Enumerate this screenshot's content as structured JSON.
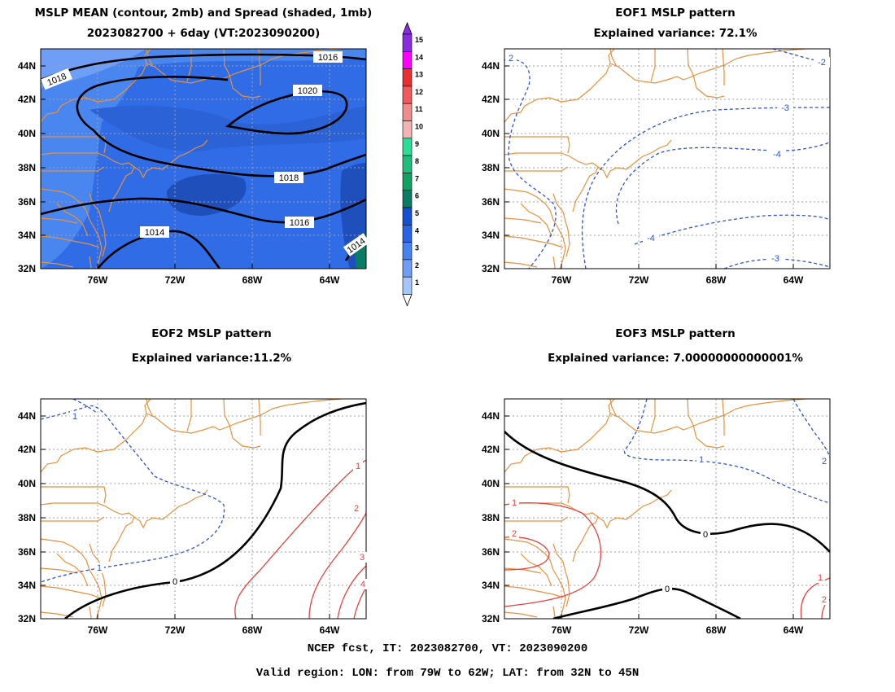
{
  "panels": [
    {
      "title_line1": "MSLP MEAN (contour, 2mb) and Spread (shaded, 1mb)",
      "title_line2": "2023082700 + 6day (VT:2023090200)",
      "contour_labels": [
        "1018",
        "1016",
        "1020",
        "1018",
        "1016",
        "1014",
        "1014",
        "1016"
      ]
    },
    {
      "title_line1": "EOF1 MSLP pattern",
      "title_line2": "Explained variance: 72.1%",
      "contour_labels": [
        "2",
        "-2",
        "-3",
        "-4",
        "-4",
        "-3"
      ]
    },
    {
      "title_line1": "EOF2 MSLP pattern",
      "title_line2": "Explained variance:11.2%",
      "contour_labels": [
        "1",
        "1",
        "0",
        "1",
        "2",
        "3",
        "4"
      ]
    },
    {
      "title_line1": "EOF3 MSLP pattern",
      "title_line2": "Explained variance: 7.00000000000001%",
      "contour_labels": [
        "1",
        "2",
        "1",
        "0",
        "0",
        "1",
        "2",
        "2"
      ]
    }
  ],
  "axes": {
    "lon_ticks": [
      "76W",
      "72W",
      "68W",
      "64W"
    ],
    "lat_ticks": [
      "44N",
      "42N",
      "40N",
      "38N",
      "36N",
      "34N",
      "32N"
    ]
  },
  "colorbar": {
    "levels": [
      "15",
      "14",
      "13",
      "12",
      "11",
      "10",
      "9",
      "8",
      "7",
      "6",
      "5",
      "4",
      "3",
      "2",
      "1"
    ],
    "colors": [
      "#8a2be2",
      "#ff00ff",
      "#e83030",
      "#f05a5a",
      "#f08c8c",
      "#f5b4b4",
      "#2ddc96",
      "#1fbe7a",
      "#12a064",
      "#0a7c64",
      "#1450d2",
      "#2864e6",
      "#4682f0",
      "#6e9ef5",
      "#a5c6fa"
    ]
  },
  "colors": {
    "coast": "#e8913c",
    "grid": "#a0a0a0",
    "negative_contour": "#3050e0",
    "positive_contour": "#e84040",
    "zero_contour": "#000000"
  },
  "footer": {
    "line1": "NCEP fcst, IT: 2023082700, VT: 2023090200",
    "line2": "Valid region: LON: from 79W to 62W; LAT: from 32N to 45N"
  }
}
